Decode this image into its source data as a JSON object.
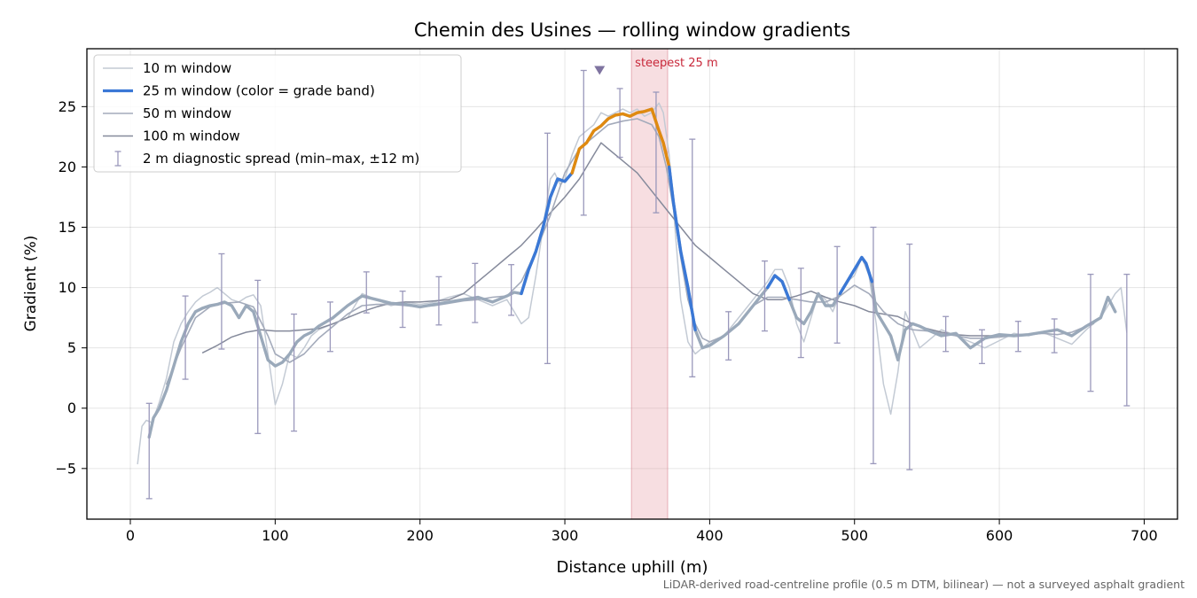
{
  "chart_data": {
    "type": "line",
    "title": "Chemin des Usines — rolling window gradients",
    "xlabel": "Distance uphill (m)",
    "ylabel": "Gradient (%)",
    "footnote": "LiDAR-derived road-centreline profile (0.5 m DTM, bilinear) — not a surveyed asphalt gradient",
    "xlim": [
      -30,
      723
    ],
    "ylim": [
      -9.2,
      29.8
    ],
    "xticks": [
      0,
      100,
      200,
      300,
      400,
      500,
      600,
      700
    ],
    "yticks": [
      -5,
      0,
      5,
      10,
      15,
      20,
      25
    ],
    "grid": true,
    "legend_position": "upper-left",
    "colors": {
      "w10": "#c3cad4",
      "w25_base": "#9aa9ba",
      "w50": "#a4abbb",
      "w100": "#858a9b",
      "band_blue": "#3a78d6",
      "band_orange": "#e08a10",
      "errorbar": "#9a98bb",
      "highlight": "#e8a0a8",
      "highlight_label": "#c8283a",
      "marker": "#7f74a0"
    },
    "legend": [
      {
        "key": "w10",
        "label": "10 m window"
      },
      {
        "key": "w25",
        "label": "25 m window (color = grade band)"
      },
      {
        "key": "w50",
        "label": "50 m window"
      },
      {
        "key": "w100",
        "label": "100 m window"
      },
      {
        "key": "err",
        "label": "2 m diagnostic spread (min–max, ±12 m)"
      }
    ],
    "highlight": {
      "label": "steepest 25 m",
      "x_start": 346,
      "x_end": 371,
      "peak_x": 324,
      "peak_y": 28.0
    },
    "series": [
      {
        "name": "10 m window",
        "key": "w10",
        "x": [
          5,
          8,
          11,
          15,
          20,
          25,
          30,
          35,
          40,
          45,
          50,
          55,
          60,
          65,
          70,
          75,
          80,
          85,
          90,
          95,
          100,
          105,
          110,
          115,
          120,
          125,
          130,
          140,
          150,
          160,
          170,
          180,
          190,
          200,
          210,
          220,
          230,
          240,
          250,
          260,
          265,
          270,
          275,
          280,
          285,
          290,
          293,
          297,
          300,
          305,
          310,
          315,
          320,
          325,
          330,
          335,
          340,
          345,
          350,
          355,
          360,
          365,
          368,
          372,
          376,
          380,
          385,
          390,
          395,
          400,
          410,
          420,
          430,
          440,
          445,
          450,
          455,
          460,
          465,
          470,
          475,
          480,
          485,
          490,
          495,
          500,
          505,
          510,
          515,
          520,
          525,
          530,
          535,
          540,
          545,
          550,
          560,
          570,
          580,
          590,
          600,
          610,
          620,
          630,
          640,
          650,
          660,
          670,
          680,
          684,
          688
        ],
        "y": [
          -4.6,
          -1.5,
          -1.0,
          -1.2,
          0.5,
          2.5,
          5.5,
          7.0,
          8.0,
          8.8,
          9.3,
          9.6,
          10.0,
          9.5,
          9.0,
          8.8,
          9.2,
          9.4,
          8.5,
          4.5,
          0.3,
          2.0,
          4.5,
          4.2,
          5.0,
          6.0,
          6.5,
          7.0,
          7.5,
          9.5,
          9.0,
          8.5,
          8.8,
          8.6,
          8.8,
          9.2,
          9.5,
          9.0,
          8.5,
          9.0,
          8.0,
          7.0,
          7.5,
          11.0,
          15.0,
          19.0,
          19.5,
          18.5,
          19.0,
          21.0,
          22.5,
          23.0,
          23.5,
          24.5,
          24.2,
          24.5,
          24.8,
          24.5,
          24.8,
          24.2,
          24.5,
          25.3,
          24.5,
          21.0,
          15.0,
          9.0,
          5.5,
          4.5,
          5.0,
          5.5,
          6.0,
          7.5,
          9.0,
          10.5,
          11.5,
          11.5,
          10.0,
          7.0,
          5.5,
          7.5,
          9.5,
          9.0,
          8.0,
          9.5,
          10.5,
          11.0,
          12.5,
          11.0,
          7.0,
          2.0,
          -0.5,
          3.0,
          8.0,
          6.5,
          5.0,
          5.5,
          6.5,
          6.0,
          5.5,
          5.0,
          5.6,
          6.2,
          6.0,
          6.3,
          5.8,
          5.3,
          6.5,
          7.5,
          9.5,
          10.0,
          6.3
        ]
      },
      {
        "name": "25 m window",
        "key": "w25",
        "x": [
          13,
          16,
          20,
          25,
          30,
          35,
          40,
          45,
          50,
          55,
          60,
          65,
          70,
          75,
          80,
          85,
          90,
          95,
          100,
          105,
          110,
          115,
          120,
          125,
          130,
          140,
          150,
          160,
          170,
          180,
          190,
          200,
          210,
          220,
          230,
          240,
          250,
          260,
          265,
          270,
          275,
          280,
          285,
          290,
          295,
          300,
          305,
          310,
          315,
          320,
          325,
          330,
          335,
          340,
          345,
          350,
          355,
          360,
          365,
          368,
          372,
          375,
          380,
          385,
          390,
          395,
          400,
          410,
          420,
          430,
          440,
          445,
          450,
          455,
          460,
          465,
          470,
          475,
          480,
          485,
          490,
          495,
          500,
          505,
          508,
          512,
          515,
          520,
          525,
          530,
          535,
          540,
          545,
          550,
          560,
          570,
          580,
          590,
          600,
          610,
          620,
          630,
          640,
          650,
          660,
          670,
          675,
          680
        ],
        "y": [
          -2.4,
          -0.8,
          0.0,
          1.5,
          3.5,
          5.5,
          7.0,
          8.0,
          8.3,
          8.5,
          8.6,
          8.8,
          8.5,
          7.5,
          8.5,
          8.0,
          6.0,
          4.0,
          3.5,
          3.8,
          4.5,
          5.5,
          6.0,
          6.3,
          6.8,
          7.5,
          8.5,
          9.3,
          9.0,
          8.7,
          8.6,
          8.4,
          8.6,
          8.8,
          9.0,
          9.2,
          8.8,
          9.3,
          9.6,
          9.5,
          11.5,
          13.0,
          15.0,
          17.5,
          19.0,
          18.8,
          19.5,
          21.5,
          22.0,
          23.0,
          23.4,
          24.0,
          24.3,
          24.4,
          24.2,
          24.5,
          24.6,
          24.8,
          23.0,
          22.0,
          20.0,
          17.0,
          13.0,
          10.0,
          6.5,
          5.0,
          5.2,
          6.0,
          7.0,
          8.5,
          10.0,
          11.0,
          10.5,
          9.0,
          7.5,
          7.0,
          8.0,
          9.5,
          8.5,
          8.5,
          9.5,
          10.5,
          11.5,
          12.5,
          12.0,
          10.5,
          8.0,
          7.0,
          6.0,
          4.0,
          6.5,
          7.0,
          6.8,
          6.5,
          6.0,
          6.2,
          5.0,
          5.8,
          6.1,
          6.0,
          6.1,
          6.3,
          6.5,
          6.0,
          6.8,
          7.5,
          9.2,
          8.0
        ]
      },
      {
        "name": "50 m window",
        "key": "w50",
        "x": [
          25,
          35,
          45,
          55,
          65,
          75,
          85,
          95,
          100,
          110,
          120,
          130,
          140,
          150,
          160,
          170,
          180,
          190,
          200,
          210,
          220,
          230,
          240,
          250,
          260,
          270,
          280,
          290,
          300,
          310,
          320,
          330,
          340,
          350,
          360,
          365,
          370,
          375,
          380,
          385,
          390,
          395,
          400,
          410,
          420,
          430,
          440,
          450,
          460,
          470,
          480,
          490,
          500,
          510,
          520,
          530,
          540,
          550,
          560,
          570,
          580,
          590,
          600,
          610,
          620,
          630,
          640,
          650,
          660,
          665
        ],
        "y": [
          2.0,
          5.0,
          7.5,
          8.4,
          8.7,
          8.8,
          8.4,
          6.0,
          4.5,
          3.8,
          4.5,
          5.8,
          6.8,
          7.8,
          8.5,
          8.6,
          8.6,
          8.5,
          8.4,
          8.5,
          8.7,
          8.9,
          9.0,
          9.2,
          9.3,
          10.5,
          13.0,
          16.0,
          19.5,
          21.5,
          22.5,
          23.5,
          23.8,
          24.0,
          23.5,
          22.5,
          20.0,
          16.5,
          12.5,
          9.0,
          7.0,
          5.8,
          5.5,
          6.0,
          7.0,
          8.5,
          9.2,
          9.2,
          9.0,
          8.8,
          8.8,
          9.3,
          10.2,
          9.5,
          8.0,
          7.0,
          6.5,
          6.4,
          6.2,
          6.0,
          5.8,
          5.8,
          5.9,
          6.0,
          6.1,
          6.2,
          6.1,
          6.3,
          6.8,
          7.0
        ]
      },
      {
        "name": "100 m window",
        "key": "w100",
        "x": [
          50,
          60,
          70,
          80,
          90,
          100,
          110,
          120,
          130,
          140,
          150,
          160,
          170,
          180,
          190,
          200,
          210,
          220,
          230,
          240,
          250,
          260,
          270,
          280,
          290,
          300,
          310,
          320,
          325,
          330,
          340,
          350,
          360,
          370,
          380,
          390,
          400,
          410,
          420,
          430,
          440,
          450,
          460,
          470,
          480,
          490,
          500,
          510,
          520,
          530,
          540,
          550,
          560,
          570,
          580,
          590,
          600,
          610,
          620,
          630,
          640
        ],
        "y": [
          4.6,
          5.2,
          5.9,
          6.3,
          6.5,
          6.4,
          6.4,
          6.5,
          6.6,
          7.0,
          7.5,
          8.0,
          8.4,
          8.7,
          8.8,
          8.8,
          8.9,
          9.0,
          9.5,
          10.5,
          11.5,
          12.5,
          13.5,
          14.8,
          16.2,
          17.5,
          19.0,
          21.0,
          22.0,
          21.5,
          20.5,
          19.5,
          18.0,
          16.5,
          15.0,
          13.5,
          12.5,
          11.5,
          10.5,
          9.5,
          9.0,
          9.0,
          9.3,
          9.7,
          9.2,
          8.8,
          8.5,
          8.0,
          7.8,
          7.6,
          7.0,
          6.6,
          6.3,
          6.1,
          6.0,
          6.0,
          6.0,
          6.0,
          6.1,
          6.3,
          6.5
        ]
      }
    ],
    "grade_bands": [
      {
        "color": "band_blue",
        "x_start": 270,
        "x_end": 305
      },
      {
        "color": "band_orange",
        "x_start": 305,
        "x_end": 372
      },
      {
        "color": "band_blue",
        "x_start": 372,
        "x_end": 390
      },
      {
        "color": "band_blue",
        "x_start": 440,
        "x_end": 455
      },
      {
        "color": "band_blue",
        "x_start": 490,
        "x_end": 512
      }
    ],
    "error_bars": [
      {
        "x": 13,
        "y": -2.4,
        "lo": -7.5,
        "hi": 0.4
      },
      {
        "x": 38,
        "y": 6.8,
        "lo": 2.4,
        "hi": 9.3
      },
      {
        "x": 63,
        "y": 8.6,
        "lo": 4.9,
        "hi": 12.8
      },
      {
        "x": 88,
        "y": 6.5,
        "lo": -2.1,
        "hi": 10.6
      },
      {
        "x": 113,
        "y": 5.0,
        "lo": -1.9,
        "hi": 7.8
      },
      {
        "x": 138,
        "y": 7.3,
        "lo": 4.7,
        "hi": 8.8
      },
      {
        "x": 163,
        "y": 9.3,
        "lo": 7.9,
        "hi": 11.3
      },
      {
        "x": 188,
        "y": 8.6,
        "lo": 6.7,
        "hi": 9.7
      },
      {
        "x": 213,
        "y": 8.6,
        "lo": 6.9,
        "hi": 10.9
      },
      {
        "x": 238,
        "y": 9.1,
        "lo": 7.1,
        "hi": 12.0
      },
      {
        "x": 263,
        "y": 9.5,
        "lo": 7.7,
        "hi": 11.9
      },
      {
        "x": 288,
        "y": 17.0,
        "lo": 3.7,
        "hi": 22.8
      },
      {
        "x": 313,
        "y": 22.0,
        "lo": 16.0,
        "hi": 28.0
      },
      {
        "x": 338,
        "y": 24.3,
        "lo": 20.8,
        "hi": 26.5
      },
      {
        "x": 363,
        "y": 24.6,
        "lo": 16.2,
        "hi": 26.2
      },
      {
        "x": 388,
        "y": 6.5,
        "lo": 2.6,
        "hi": 22.3
      },
      {
        "x": 413,
        "y": 6.3,
        "lo": 4.0,
        "hi": 8.0
      },
      {
        "x": 438,
        "y": 9.8,
        "lo": 6.4,
        "hi": 12.2
      },
      {
        "x": 463,
        "y": 7.3,
        "lo": 4.2,
        "hi": 11.6
      },
      {
        "x": 488,
        "y": 8.8,
        "lo": 5.4,
        "hi": 13.4
      },
      {
        "x": 513,
        "y": 9.5,
        "lo": -4.6,
        "hi": 15.0
      },
      {
        "x": 538,
        "y": 6.5,
        "lo": -5.1,
        "hi": 13.6
      },
      {
        "x": 563,
        "y": 6.4,
        "lo": 4.7,
        "hi": 7.6
      },
      {
        "x": 588,
        "y": 5.3,
        "lo": 3.7,
        "hi": 6.5
      },
      {
        "x": 613,
        "y": 6.1,
        "lo": 4.7,
        "hi": 7.2
      },
      {
        "x": 638,
        "y": 6.2,
        "lo": 4.6,
        "hi": 7.4
      },
      {
        "x": 663,
        "y": 6.8,
        "lo": 1.4,
        "hi": 11.1
      },
      {
        "x": 688,
        "y": 6.4,
        "lo": 0.2,
        "hi": 11.1
      }
    ]
  }
}
